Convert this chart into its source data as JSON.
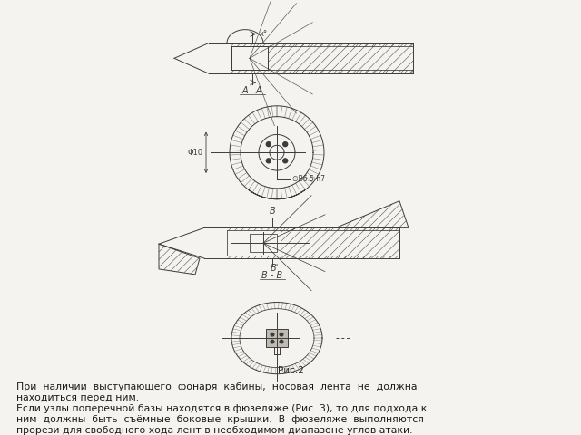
{
  "background_color": "#f5f3ef",
  "fig_width": 6.4,
  "fig_height": 4.8,
  "dpi": 100,
  "caption_label": "Рис.2",
  "text_lines": [
    "При  наличии  выступающего  фонаря  кабины,  носовая  лента  не  должна",
    "находиться перед ним.",
    "Если узлы поперечной базы находятся в фюзеляже (Рис. 3), то для подхода к",
    "ним  должны  быть  съёмные  боковые  крышки.  В  фюзеляже  выполняются",
    "прорези для свободного хода лент в необходимом диапазоне углов атаки."
  ],
  "lc": "#3c3c3c",
  "lw": 0.7,
  "hatch_lw": 0.35
}
